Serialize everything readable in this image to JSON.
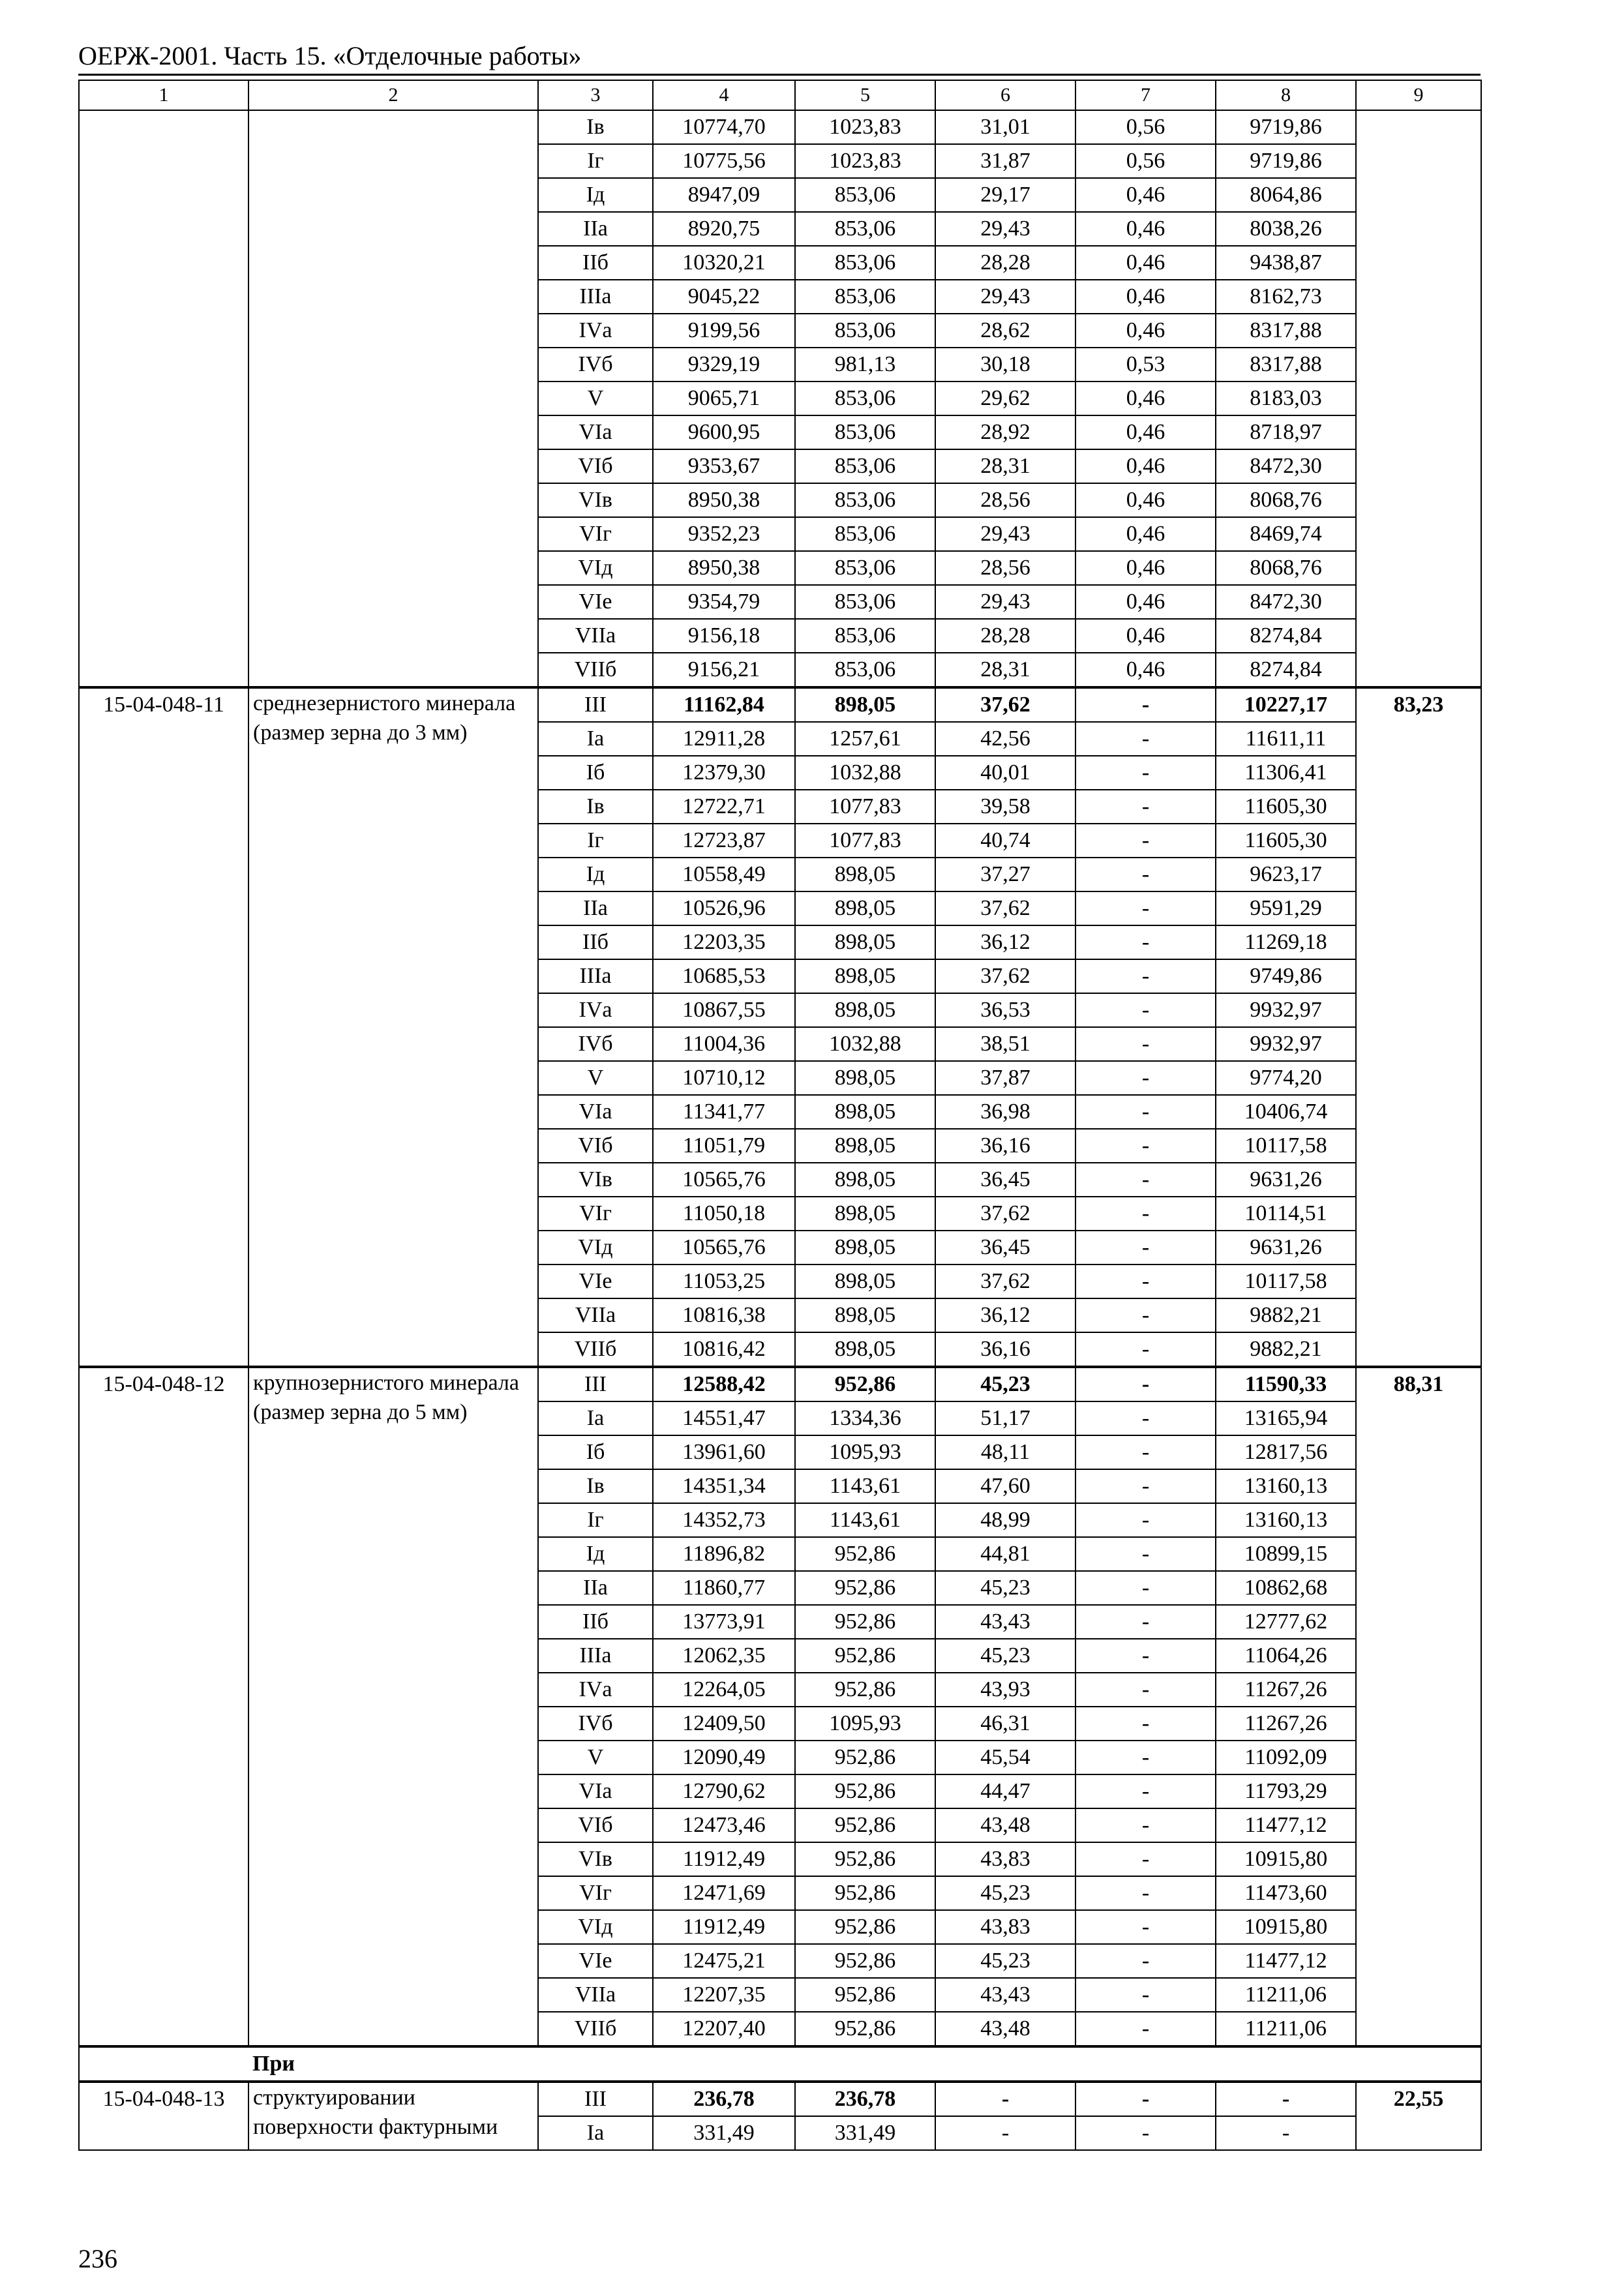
{
  "header": {
    "title": "ОЕРЖ-2001. Часть 15. «Отделочные работы»"
  },
  "table": {
    "column_numbers": [
      "1",
      "2",
      "3",
      "4",
      "5",
      "6",
      "7",
      "8",
      "9"
    ],
    "groups": [
      {
        "code": "",
        "description": "",
        "col9": "",
        "bold_first": false,
        "rows": [
          [
            "Iв",
            "10774,70",
            "1023,83",
            "31,01",
            "0,56",
            "9719,86"
          ],
          [
            "Iг",
            "10775,56",
            "1023,83",
            "31,87",
            "0,56",
            "9719,86"
          ],
          [
            "Iд",
            "8947,09",
            "853,06",
            "29,17",
            "0,46",
            "8064,86"
          ],
          [
            "IIа",
            "8920,75",
            "853,06",
            "29,43",
            "0,46",
            "8038,26"
          ],
          [
            "IIб",
            "10320,21",
            "853,06",
            "28,28",
            "0,46",
            "9438,87"
          ],
          [
            "IIIа",
            "9045,22",
            "853,06",
            "29,43",
            "0,46",
            "8162,73"
          ],
          [
            "IVа",
            "9199,56",
            "853,06",
            "28,62",
            "0,46",
            "8317,88"
          ],
          [
            "IVб",
            "9329,19",
            "981,13",
            "30,18",
            "0,53",
            "8317,88"
          ],
          [
            "V",
            "9065,71",
            "853,06",
            "29,62",
            "0,46",
            "8183,03"
          ],
          [
            "VIа",
            "9600,95",
            "853,06",
            "28,92",
            "0,46",
            "8718,97"
          ],
          [
            "VIб",
            "9353,67",
            "853,06",
            "28,31",
            "0,46",
            "8472,30"
          ],
          [
            "VIв",
            "8950,38",
            "853,06",
            "28,56",
            "0,46",
            "8068,76"
          ],
          [
            "VIг",
            "9352,23",
            "853,06",
            "29,43",
            "0,46",
            "8469,74"
          ],
          [
            "VIд",
            "8950,38",
            "853,06",
            "28,56",
            "0,46",
            "8068,76"
          ],
          [
            "VIе",
            "9354,79",
            "853,06",
            "29,43",
            "0,46",
            "8472,30"
          ],
          [
            "VIIа",
            "9156,18",
            "853,06",
            "28,28",
            "0,46",
            "8274,84"
          ],
          [
            "VIIб",
            "9156,21",
            "853,06",
            "28,31",
            "0,46",
            "8274,84"
          ]
        ]
      },
      {
        "code": "15-04-048-11",
        "description": "среднезернистого минерала (размер зерна до 3 мм)",
        "col9": "83,23",
        "bold_first": true,
        "rows": [
          [
            "III",
            "11162,84",
            "898,05",
            "37,62",
            "-",
            "10227,17"
          ],
          [
            "Iа",
            "12911,28",
            "1257,61",
            "42,56",
            "-",
            "11611,11"
          ],
          [
            "Iб",
            "12379,30",
            "1032,88",
            "40,01",
            "-",
            "11306,41"
          ],
          [
            "Iв",
            "12722,71",
            "1077,83",
            "39,58",
            "-",
            "11605,30"
          ],
          [
            "Iг",
            "12723,87",
            "1077,83",
            "40,74",
            "-",
            "11605,30"
          ],
          [
            "Iд",
            "10558,49",
            "898,05",
            "37,27",
            "-",
            "9623,17"
          ],
          [
            "IIа",
            "10526,96",
            "898,05",
            "37,62",
            "-",
            "9591,29"
          ],
          [
            "IIб",
            "12203,35",
            "898,05",
            "36,12",
            "-",
            "11269,18"
          ],
          [
            "IIIа",
            "10685,53",
            "898,05",
            "37,62",
            "-",
            "9749,86"
          ],
          [
            "IVа",
            "10867,55",
            "898,05",
            "36,53",
            "-",
            "9932,97"
          ],
          [
            "IVб",
            "11004,36",
            "1032,88",
            "38,51",
            "-",
            "9932,97"
          ],
          [
            "V",
            "10710,12",
            "898,05",
            "37,87",
            "-",
            "9774,20"
          ],
          [
            "VIа",
            "11341,77",
            "898,05",
            "36,98",
            "-",
            "10406,74"
          ],
          [
            "VIб",
            "11051,79",
            "898,05",
            "36,16",
            "-",
            "10117,58"
          ],
          [
            "VIв",
            "10565,76",
            "898,05",
            "36,45",
            "-",
            "9631,26"
          ],
          [
            "VIг",
            "11050,18",
            "898,05",
            "37,62",
            "-",
            "10114,51"
          ],
          [
            "VIд",
            "10565,76",
            "898,05",
            "36,45",
            "-",
            "9631,26"
          ],
          [
            "VIе",
            "11053,25",
            "898,05",
            "37,62",
            "-",
            "10117,58"
          ],
          [
            "VIIа",
            "10816,38",
            "898,05",
            "36,12",
            "-",
            "9882,21"
          ],
          [
            "VIIб",
            "10816,42",
            "898,05",
            "36,16",
            "-",
            "9882,21"
          ]
        ]
      },
      {
        "code": "15-04-048-12",
        "description": "крупнозернистого минерала (размер зерна до 5 мм)",
        "col9": "88,31",
        "bold_first": true,
        "rows": [
          [
            "III",
            "12588,42",
            "952,86",
            "45,23",
            "-",
            "11590,33"
          ],
          [
            "Iа",
            "14551,47",
            "1334,36",
            "51,17",
            "-",
            "13165,94"
          ],
          [
            "Iб",
            "13961,60",
            "1095,93",
            "48,11",
            "-",
            "12817,56"
          ],
          [
            "Iв",
            "14351,34",
            "1143,61",
            "47,60",
            "-",
            "13160,13"
          ],
          [
            "Iг",
            "14352,73",
            "1143,61",
            "48,99",
            "-",
            "13160,13"
          ],
          [
            "Iд",
            "11896,82",
            "952,86",
            "44,81",
            "-",
            "10899,15"
          ],
          [
            "IIа",
            "11860,77",
            "952,86",
            "45,23",
            "-",
            "10862,68"
          ],
          [
            "IIб",
            "13773,91",
            "952,86",
            "43,43",
            "-",
            "12777,62"
          ],
          [
            "IIIа",
            "12062,35",
            "952,86",
            "45,23",
            "-",
            "11064,26"
          ],
          [
            "IVа",
            "12264,05",
            "952,86",
            "43,93",
            "-",
            "11267,26"
          ],
          [
            "IVб",
            "12409,50",
            "1095,93",
            "46,31",
            "-",
            "11267,26"
          ],
          [
            "V",
            "12090,49",
            "952,86",
            "45,54",
            "-",
            "11092,09"
          ],
          [
            "VIа",
            "12790,62",
            "952,86",
            "44,47",
            "-",
            "11793,29"
          ],
          [
            "VIб",
            "12473,46",
            "952,86",
            "43,48",
            "-",
            "11477,12"
          ],
          [
            "VIв",
            "11912,49",
            "952,86",
            "43,83",
            "-",
            "10915,80"
          ],
          [
            "VIг",
            "12471,69",
            "952,86",
            "45,23",
            "-",
            "11473,60"
          ],
          [
            "VIд",
            "11912,49",
            "952,86",
            "43,83",
            "-",
            "10915,80"
          ],
          [
            "VIе",
            "12475,21",
            "952,86",
            "45,23",
            "-",
            "11477,12"
          ],
          [
            "VIIа",
            "12207,35",
            "952,86",
            "43,43",
            "-",
            "11211,06"
          ],
          [
            "VIIб",
            "12207,40",
            "952,86",
            "43,48",
            "-",
            "11211,06"
          ]
        ]
      }
    ],
    "section_note": "При",
    "last_group": {
      "code": "15-04-048-13",
      "description": "структуировании поверхности фактурными",
      "col9": "22,55",
      "bold_first": true,
      "rows": [
        [
          "III",
          "236,78",
          "236,78",
          "-",
          "-",
          "-"
        ],
        [
          "Iа",
          "331,49",
          "331,49",
          "-",
          "-",
          "-"
        ]
      ]
    }
  },
  "footer": {
    "page_number": "236"
  }
}
